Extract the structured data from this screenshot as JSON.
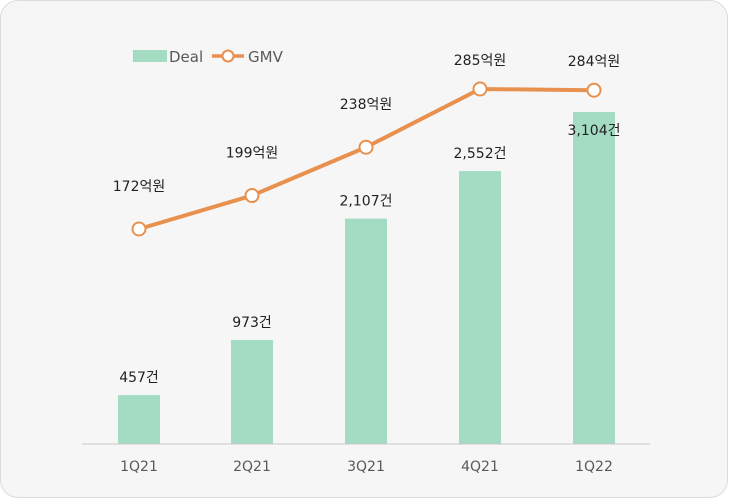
{
  "chart_data": {
    "type": "bar",
    "categories": [
      "1Q21",
      "2Q21",
      "3Q21",
      "4Q21",
      "1Q22"
    ],
    "series": [
      {
        "name": "Deal",
        "type": "bar",
        "values": [
          457,
          973,
          2107,
          2552,
          3104
        ],
        "labels": [
          "457건",
          "973건",
          "2,107건",
          "2,552건",
          "3,104건"
        ]
      },
      {
        "name": "GMV",
        "type": "line",
        "values": [
          172,
          199,
          238,
          285,
          284
        ],
        "labels": [
          "172억원",
          "199억원",
          "238억원",
          "285억원",
          "284억원"
        ]
      }
    ],
    "legend_position": "top-left",
    "grid": false,
    "colors": {
      "bar": "#a3dcc3",
      "line": "#e8914f",
      "axis": "#c8c8c8"
    }
  }
}
